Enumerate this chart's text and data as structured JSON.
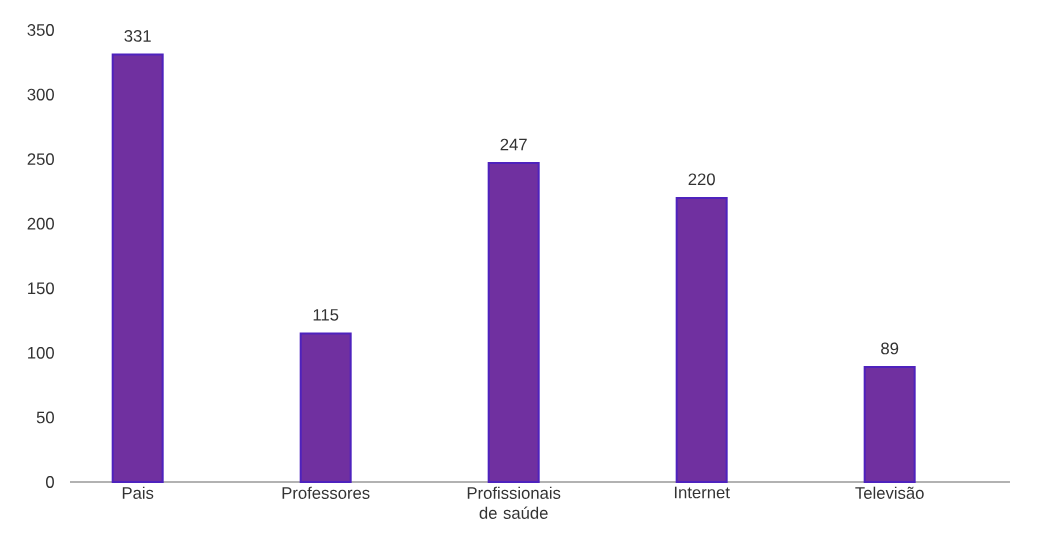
{
  "chart_data": {
    "type": "bar",
    "categories": [
      "Pais",
      "Professores",
      "Profissionais de saúde",
      "Internet",
      "Televisão"
    ],
    "values": [
      331,
      115,
      247,
      220,
      89
    ],
    "color": "#7030a0",
    "ylim": [
      0,
      350
    ],
    "yticks": [
      0,
      50,
      100,
      150,
      200,
      250,
      300,
      350
    ],
    "data_labels": true
  }
}
